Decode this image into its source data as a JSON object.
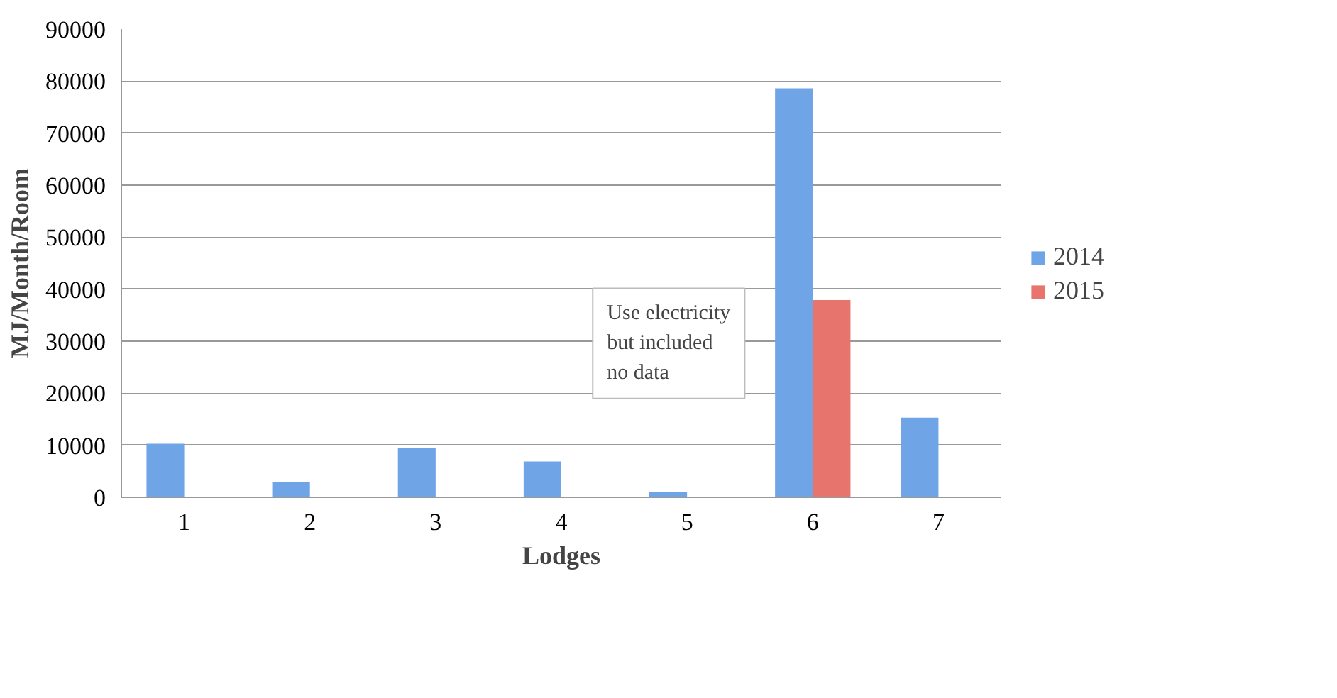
{
  "chart_data": {
    "type": "bar",
    "xlabel": "Lodges",
    "ylabel": "MJ/Month/Room",
    "categories": [
      "1",
      "2",
      "3",
      "4",
      "5",
      "6",
      "7"
    ],
    "series": [
      {
        "name": "2014",
        "color": "#6fa5e6",
        "values": [
          10300,
          3000,
          9500,
          6900,
          1100,
          78600,
          15300
        ]
      },
      {
        "name": "2015",
        "color": "#e8756d",
        "values": [
          null,
          null,
          null,
          null,
          null,
          37900,
          null
        ]
      }
    ],
    "ylim": [
      0,
      90000
    ],
    "yticks": [
      0,
      10000,
      20000,
      30000,
      40000,
      50000,
      60000,
      70000,
      80000,
      90000
    ],
    "grid": "y",
    "legend": "right",
    "annotations": [
      "Use electricity but included no data"
    ]
  }
}
